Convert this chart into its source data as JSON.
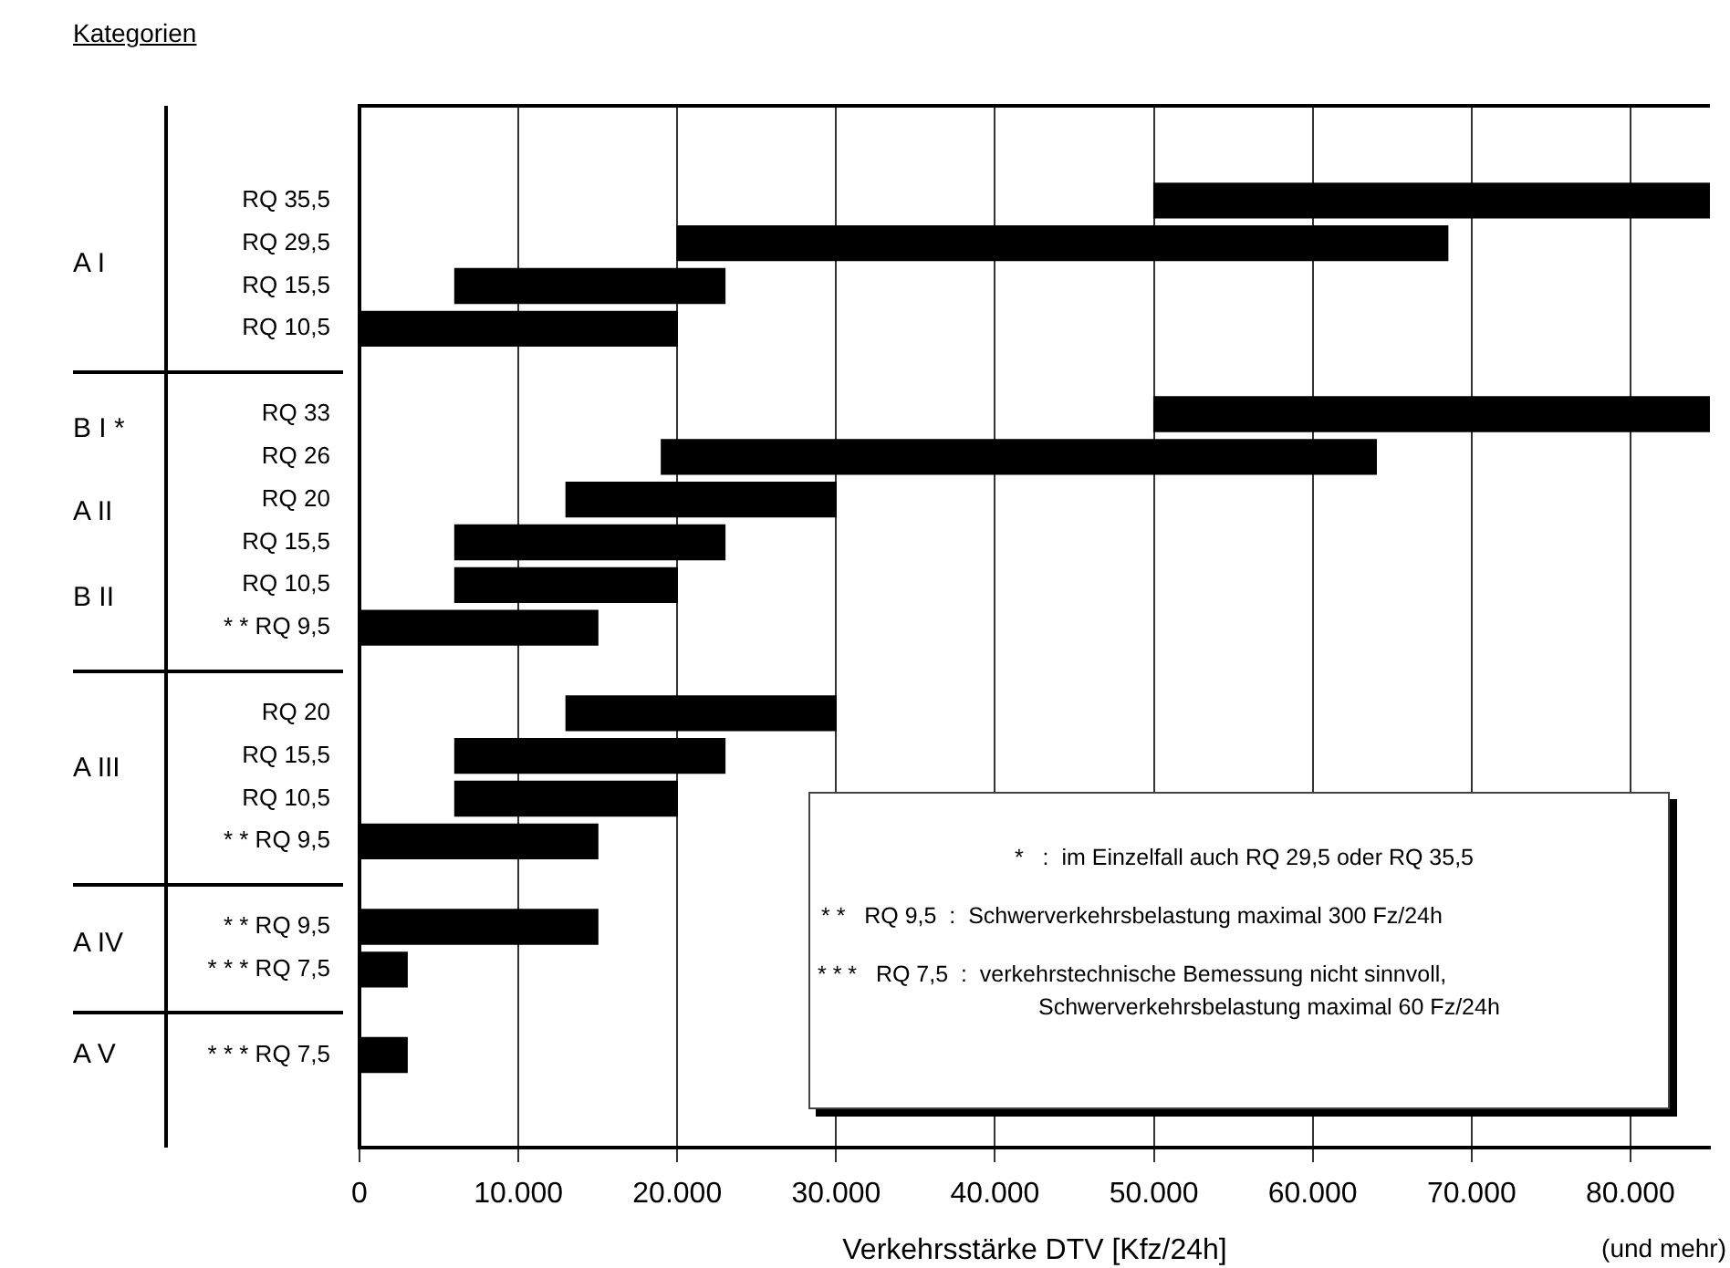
{
  "chart_data": {
    "type": "bar",
    "orientation": "horizontal",
    "ylabel": "Kategorien",
    "xlabel": "Verkehrsstärke DTV [Kfz/24h]",
    "categories": [
      "RQ 35,5",
      "RQ 29,5",
      "RQ 15,5",
      "RQ 10,5",
      "RQ 33",
      "RQ 26",
      "RQ 20",
      "RQ 15,5",
      "RQ 10,5",
      "* * RQ 9,5",
      "RQ 20",
      "RQ 15,5",
      "RQ 10,5",
      "* * RQ 9,5",
      "* * RQ 9,5",
      "* * * RQ 7,5",
      "* * * RQ 7,5"
    ],
    "base": [
      50000,
      20000,
      6000,
      0,
      50000,
      19000,
      13000,
      6000,
      6000,
      0,
      13000,
      6000,
      6000,
      0,
      0,
      0,
      0
    ],
    "values": [
      35000,
      48500,
      17000,
      20000,
      35000,
      45000,
      17000,
      17000,
      14000,
      15000,
      17000,
      17000,
      14000,
      15000,
      15000,
      3000,
      3000
    ],
    "color": "#000000",
    "xlim": [
      0,
      85000
    ],
    "xticks": [
      0,
      {
        "value": 10000,
        "label": "10.000"
      },
      {
        "value": 20000,
        "label": "20.000"
      },
      {
        "value": 30000,
        "label": "30.000"
      },
      {
        "value": 40000,
        "label": "40.000"
      },
      {
        "value": 50000,
        "label": "50.000"
      },
      {
        "value": 60000,
        "label": "60.000"
      },
      {
        "value": 70000,
        "label": "70.000"
      },
      {
        "value": 80000,
        "label": "80.000"
      }
    ],
    "grid": "x",
    "legend": false,
    "annotations": [
      "A I",
      "B I *",
      "A II",
      "B II",
      "A III",
      "A IV",
      "A V",
      "*   :  im Einzelfall auch RQ 29,5 oder RQ 35,5",
      "* *   RQ 9,5  :  Schwerverkehrsbelastung maximal 300 Fz/24h",
      "* * *   RQ 7,5  :  verkehrstechnische Bemessung nicht sinnvoll,",
      "Schwerverkehrsbelastung maximal 60 Fz/24h",
      "(und mehr)"
    ]
  }
}
